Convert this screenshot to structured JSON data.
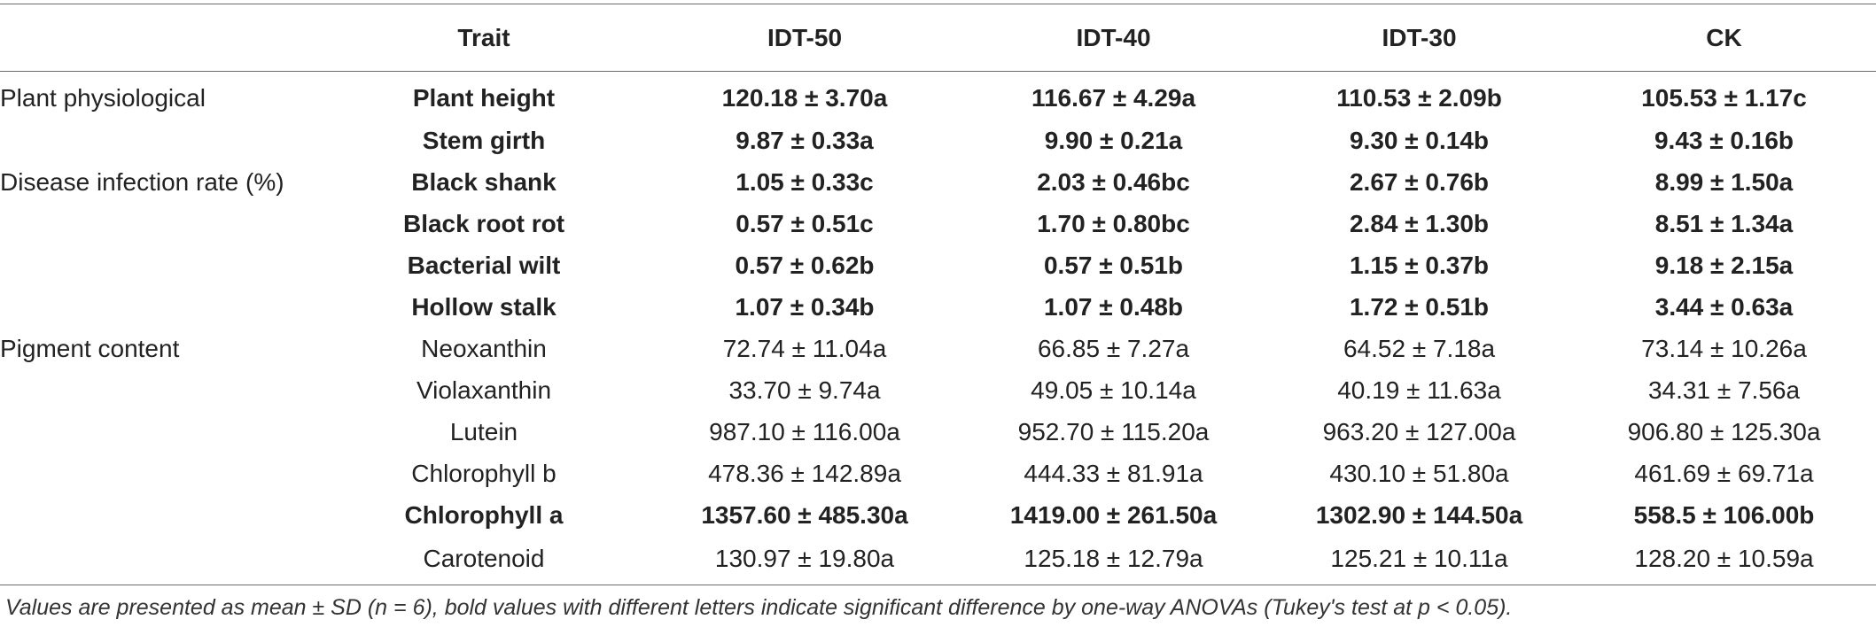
{
  "table": {
    "headers": [
      "",
      "Trait",
      "IDT-50",
      "IDT-40",
      "IDT-30",
      "CK"
    ],
    "rows": [
      {
        "category": "Plant physiological",
        "trait": "Plant height",
        "values": [
          "120.18 ± 3.70a",
          "116.67 ± 4.29a",
          "110.53 ± 2.09b",
          "105.53 ± 1.17c"
        ],
        "bold": true
      },
      {
        "category": "",
        "trait": "Stem girth",
        "values": [
          "9.87 ± 0.33a",
          "9.90 ± 0.21a",
          "9.30 ± 0.14b",
          "9.43 ± 0.16b"
        ],
        "bold": true
      },
      {
        "category": "Disease infection rate (%)",
        "trait": "Black shank",
        "values": [
          "1.05 ± 0.33c",
          "2.03 ± 0.46bc",
          "2.67 ± 0.76b",
          "8.99 ± 1.50a"
        ],
        "bold": true
      },
      {
        "category": "",
        "trait": "Black root rot",
        "values": [
          "0.57 ± 0.51c",
          "1.70 ± 0.80bc",
          "2.84 ± 1.30b",
          "8.51 ± 1.34a"
        ],
        "bold": true
      },
      {
        "category": "",
        "trait": "Bacterial wilt",
        "values": [
          "0.57 ± 0.62b",
          "0.57 ± 0.51b",
          "1.15 ± 0.37b",
          "9.18 ± 2.15a"
        ],
        "bold": true
      },
      {
        "category": "",
        "trait": "Hollow stalk",
        "values": [
          "1.07 ± 0.34b",
          "1.07 ± 0.48b",
          "1.72 ± 0.51b",
          "3.44 ± 0.63a"
        ],
        "bold": true
      },
      {
        "category": "Pigment content",
        "trait": "Neoxanthin",
        "values": [
          "72.74 ± 11.04a",
          "66.85 ± 7.27a",
          "64.52 ± 7.18a",
          "73.14 ± 10.26a"
        ],
        "bold": false
      },
      {
        "category": "",
        "trait": "Violaxanthin",
        "values": [
          "33.70 ± 9.74a",
          "49.05 ± 10.14a",
          "40.19 ± 11.63a",
          "34.31 ± 7.56a"
        ],
        "bold": false
      },
      {
        "category": "",
        "trait": "Lutein",
        "values": [
          "987.10 ± 116.00a",
          "952.70 ± 115.20a",
          "963.20 ± 127.00a",
          "906.80 ± 125.30a"
        ],
        "bold": false
      },
      {
        "category": "",
        "trait": "Chlorophyll b",
        "values": [
          "478.36 ± 142.89a",
          "444.33 ± 81.91a",
          "430.10 ± 51.80a",
          "461.69 ± 69.71a"
        ],
        "bold": false
      },
      {
        "category": "",
        "trait": "Chlorophyll a",
        "values": [
          "1357.60 ± 485.30a",
          "1419.00 ± 261.50a",
          "1302.90 ± 144.50a",
          "558.5 ± 106.00b"
        ],
        "bold": true
      },
      {
        "category": "",
        "trait": "Carotenoid",
        "values": [
          "130.97 ± 19.80a",
          "125.18 ± 12.79a",
          "125.21 ± 10.11a",
          "128.20 ± 10.59a"
        ],
        "bold": false
      }
    ]
  },
  "footnote": "Values are presented as mean ± SD (n = 6), bold values with different letters indicate significant difference by one-way ANOVAs (Tukey's test at p < 0.05)."
}
